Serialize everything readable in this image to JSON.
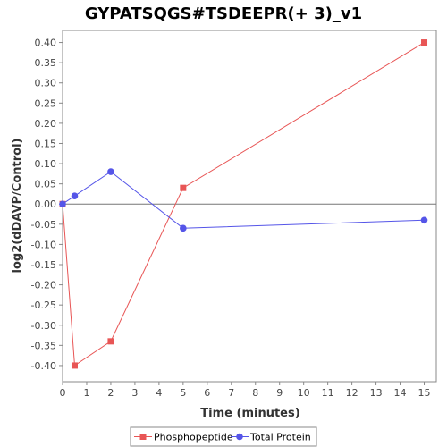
{
  "chart_data": {
    "type": "line",
    "title": "GYPATSQGS#TSDEEPR(+ 3)_v1",
    "xlabel": "Time (minutes)",
    "ylabel": "log2(dDAVP/Control)",
    "xlim": [
      0,
      15.5
    ],
    "ylim": [
      -0.44,
      0.43
    ],
    "x_ticks": [
      0,
      1,
      2,
      3,
      4,
      5,
      6,
      7,
      8,
      9,
      10,
      11,
      12,
      13,
      14,
      15
    ],
    "x_tick_labels": [
      "0",
      "1",
      "2",
      "3",
      "4",
      "5",
      "6",
      "7",
      "8",
      "9",
      "10",
      "11",
      "12",
      "13",
      "14",
      "15"
    ],
    "y_ticks": [
      -0.4,
      -0.35,
      -0.3,
      -0.25,
      -0.2,
      -0.15,
      -0.1,
      -0.05,
      0.0,
      0.05,
      0.1,
      0.15,
      0.2,
      0.25,
      0.3,
      0.35,
      0.4
    ],
    "y_tick_labels": [
      "-0.40",
      "-0.35",
      "-0.30",
      "-0.25",
      "-0.20",
      "-0.15",
      "-0.10",
      "-0.05",
      "0.00",
      "0.05",
      "0.10",
      "0.15",
      "0.20",
      "0.25",
      "0.30",
      "0.35",
      "0.40"
    ],
    "grid": false,
    "zero_line": true,
    "legend_position": "bottom",
    "series": [
      {
        "name": "Phosphopeptide",
        "color": "#e85555",
        "marker": "square",
        "x": [
          0,
          0.5,
          2,
          5,
          15
        ],
        "y": [
          0.0,
          -0.4,
          -0.34,
          0.04,
          0.4
        ]
      },
      {
        "name": "Total Protein",
        "color": "#5555e8",
        "marker": "circle",
        "x": [
          0,
          0.5,
          2,
          5,
          15
        ],
        "y": [
          0.0,
          0.02,
          0.08,
          -0.06,
          -0.04
        ]
      }
    ]
  }
}
